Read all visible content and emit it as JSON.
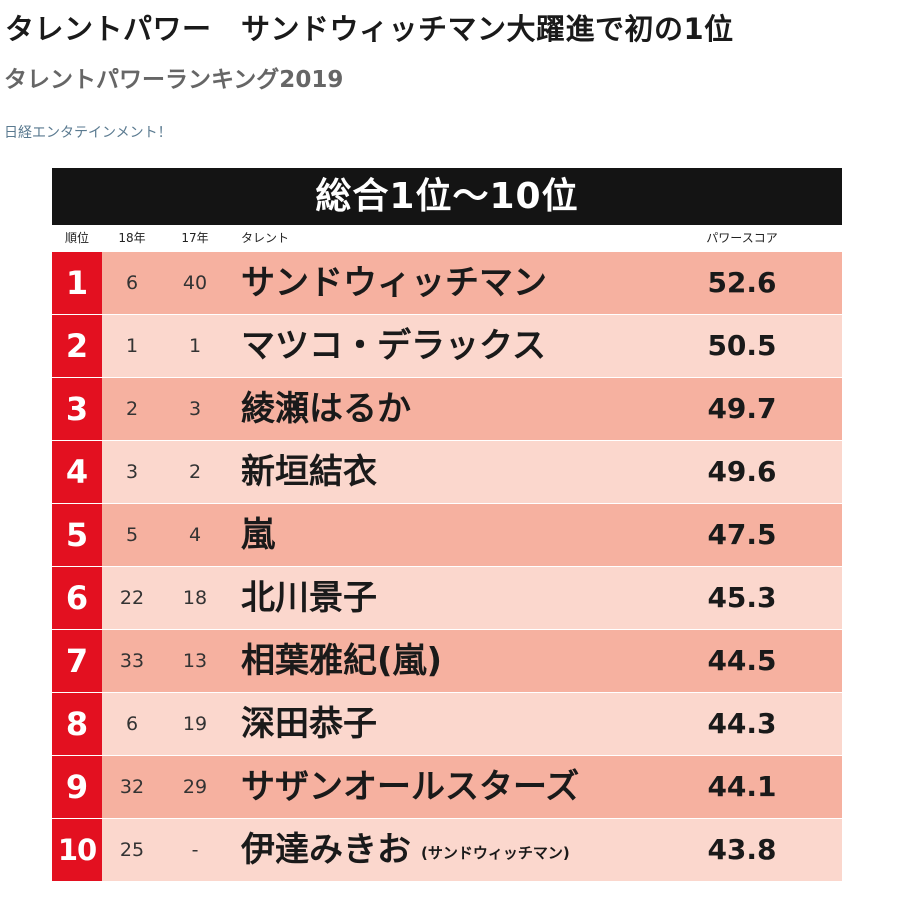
{
  "headline": "タレントパワー　サンドウィッチマン大躍進で初の1位",
  "subheading": "タレントパワーランキング2019",
  "source": "日経エンタテインメント！",
  "table": {
    "banner": "総合1位〜10位",
    "columns": {
      "rank": "順位",
      "y18": "18年",
      "y17": "17年",
      "talent": "タレント",
      "score": "パワースコア"
    },
    "rows": [
      {
        "rank": "1",
        "y18": "6",
        "y17": "40",
        "talent": "サンドウィッチマン",
        "note": "",
        "score": "52.6"
      },
      {
        "rank": "2",
        "y18": "1",
        "y17": "1",
        "talent": "マツコ・デラックス",
        "note": "",
        "score": "50.5"
      },
      {
        "rank": "3",
        "y18": "2",
        "y17": "3",
        "talent": "綾瀬はるか",
        "note": "",
        "score": "49.7"
      },
      {
        "rank": "4",
        "y18": "3",
        "y17": "2",
        "talent": "新垣結衣",
        "note": "",
        "score": "49.6"
      },
      {
        "rank": "5",
        "y18": "5",
        "y17": "4",
        "talent": "嵐",
        "note": "",
        "score": "47.5"
      },
      {
        "rank": "6",
        "y18": "22",
        "y17": "18",
        "talent": "北川景子",
        "note": "",
        "score": "45.3"
      },
      {
        "rank": "7",
        "y18": "33",
        "y17": "13",
        "talent": "相葉雅紀(嵐)",
        "note": "",
        "score": "44.5"
      },
      {
        "rank": "8",
        "y18": "6",
        "y17": "19",
        "talent": "深田恭子",
        "note": "",
        "score": "44.3"
      },
      {
        "rank": "9",
        "y18": "32",
        "y17": "29",
        "talent": "サザンオールスターズ",
        "note": "",
        "score": "44.1"
      },
      {
        "rank": "10",
        "y18": "25",
        "y17": "-",
        "talent": "伊達みきお",
        "note": "(サンドウィッチマン)",
        "score": "43.8"
      }
    ]
  },
  "colors": {
    "banner_bg": "#141414",
    "rank_bg": "#e31020",
    "row_dark": "#f6b1a0",
    "row_light": "#fbd7cd",
    "source_link": "#5a7a90"
  }
}
